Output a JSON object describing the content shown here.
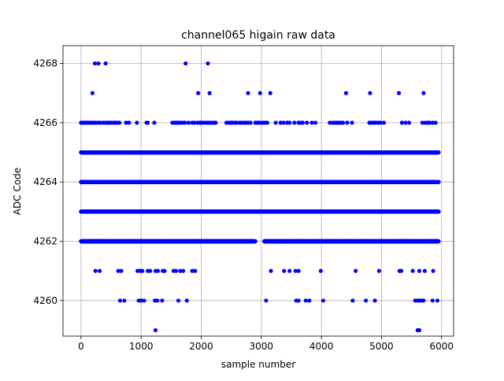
{
  "chart_data": {
    "type": "scatter",
    "title": "channel065 higain raw data",
    "xlabel": "sample number",
    "ylabel": "ADC Code",
    "xlim": [
      -300,
      6200
    ],
    "ylim": [
      4258.8,
      4268.6
    ],
    "x_ticks": [
      0,
      1000,
      2000,
      3000,
      4000,
      5000,
      6000
    ],
    "y_ticks": [
      4260,
      4262,
      4264,
      4266,
      4268
    ],
    "grid": true,
    "marker_color": "#0000ff",
    "n_samples": 5950,
    "dense_levels": [
      {
        "y": 4262,
        "x_range": [
          0,
          5950
        ],
        "gap": [
          2900,
          3050
        ]
      },
      {
        "y": 4263,
        "x_range": [
          0,
          5950
        ]
      },
      {
        "y": 4264,
        "x_range": [
          0,
          5950
        ]
      },
      {
        "y": 4265,
        "x_range": [
          0,
          5950
        ]
      }
    ],
    "sparse_points": [
      {
        "y": 4268,
        "x": [
          230,
          290,
          410,
          1740,
          2110
        ]
      },
      {
        "y": 4267,
        "x": [
          190,
          1950,
          2140,
          2780,
          2980,
          3150,
          4410,
          4810,
          5290,
          5700
        ]
      },
      {
        "y": 4266,
        "x": [
          0,
          30,
          60,
          90,
          120,
          150,
          180,
          210,
          240,
          280,
          320,
          370,
          410,
          440,
          470,
          500,
          540,
          570,
          600,
          640,
          750,
          800,
          930,
          1090,
          1110,
          1220,
          1520,
          1560,
          1590,
          1620,
          1650,
          1690,
          1730,
          1790,
          1850,
          1890,
          1940,
          1980,
          2010,
          2040,
          2080,
          2110,
          2140,
          2170,
          2210,
          2240,
          2420,
          2460,
          2490,
          2520,
          2560,
          2590,
          2640,
          2670,
          2710,
          2740,
          2780,
          2820,
          2900,
          2930,
          2960,
          3000,
          3030,
          3060,
          3100,
          3240,
          3320,
          3370,
          3430,
          3470,
          3550,
          3620,
          3650,
          3690,
          3760,
          3840,
          3900,
          4140,
          4190,
          4230,
          4260,
          4290,
          4320,
          4360,
          4430,
          4510,
          4800,
          4830,
          4870,
          4900,
          4940,
          4980,
          5040,
          5340,
          5400,
          5460,
          5680,
          5730,
          5770,
          5800,
          5850,
          5900
        ]
      },
      {
        "y": 4261,
        "x": [
          240,
          310,
          620,
          670,
          940,
          980,
          1020,
          1110,
          1150,
          1240,
          1280,
          1360,
          1390,
          1540,
          1580,
          1650,
          1700,
          1850,
          1900,
          3160,
          3380,
          3470,
          3570,
          3620,
          3990,
          4570,
          4960,
          5300,
          5330,
          5520,
          5630,
          5720,
          5860
        ]
      },
      {
        "y": 4260,
        "x": [
          650,
          720,
          960,
          1000,
          1050,
          1230,
          1270,
          1350,
          1620,
          1760,
          3080,
          3580,
          3620,
          3740,
          3800,
          4030,
          4520,
          4740,
          4890,
          5560,
          5600,
          5630,
          5670,
          5700,
          5850,
          5930
        ]
      },
      {
        "y": 4259,
        "x": [
          1240,
          5600,
          5630
        ]
      }
    ]
  }
}
